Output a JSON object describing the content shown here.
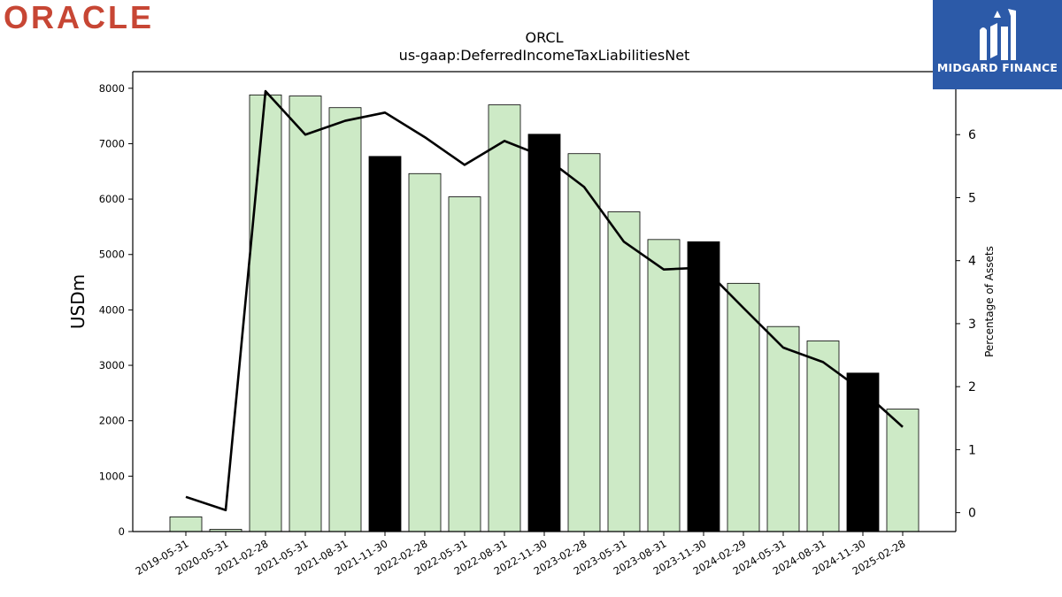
{
  "brand": {
    "left_logo": "ORACLE",
    "right_logo": "MIDGARD FINANCE",
    "colors": {
      "oracle_red": "#c74634",
      "midgard_blue": "#2c5aa8"
    }
  },
  "chart_data": {
    "type": "bar",
    "title": "ORCL",
    "subtitle": "us-gaap:DeferredIncomeTaxLiabilitiesNet",
    "ylabel": "USDm",
    "y2label": "Percentage of Assets",
    "ylim": [
      0,
      8300
    ],
    "y2lim": [
      -0.3,
      7.0
    ],
    "yticks": [
      0,
      1000,
      2000,
      3000,
      4000,
      5000,
      6000,
      7000,
      8000
    ],
    "y2ticks": [
      0,
      1,
      2,
      3,
      4,
      5,
      6
    ],
    "grid": false,
    "categories": [
      "2019-05-31",
      "2020-05-31",
      "2021-02-28",
      "2021-05-31",
      "2021-08-31",
      "2021-11-30",
      "2022-02-28",
      "2022-05-31",
      "2022-08-31",
      "2022-11-30",
      "2023-02-28",
      "2023-05-31",
      "2023-08-31",
      "2023-11-30",
      "2024-02-29",
      "2024-05-31",
      "2024-08-31",
      "2024-11-30",
      "2025-02-28"
    ],
    "series": [
      {
        "type": "bar",
        "axis": "left",
        "values": [
          265,
          40,
          7880,
          7860,
          7650,
          6770,
          6460,
          6040,
          7700,
          7170,
          6820,
          5770,
          5270,
          5230,
          4480,
          3700,
          3440,
          2860,
          2210
        ]
      },
      {
        "type": "line",
        "axis": "right",
        "values": [
          0.25,
          0.04,
          6.69,
          6.0,
          6.22,
          6.35,
          5.96,
          5.52,
          5.9,
          5.65,
          5.17,
          4.3,
          3.86,
          3.89,
          3.25,
          2.62,
          2.39,
          1.93,
          1.36
        ]
      }
    ],
    "bar_colors": {
      "default": "#cdeac6",
      "highlight": "#000000"
    },
    "highlight_categories": [
      "2021-11-30",
      "2022-11-30",
      "2023-11-30",
      "2024-11-30"
    ]
  }
}
